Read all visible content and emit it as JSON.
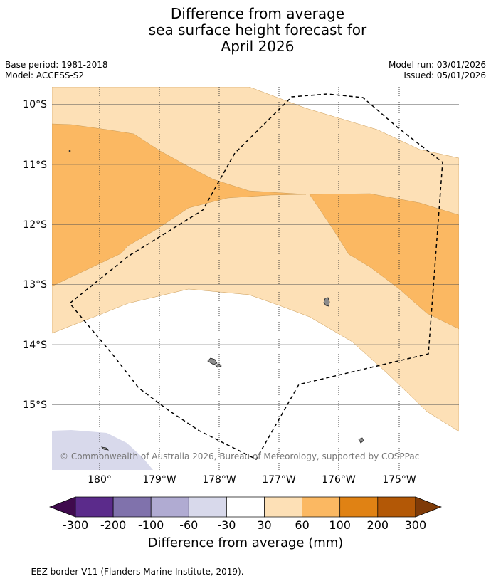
{
  "title": {
    "line1": "Difference from average",
    "line2": "sea surface height forecast for",
    "line3": "April 2026"
  },
  "meta": {
    "base_period": "Base period: 1981-2018",
    "model": "Model: ACCESS-S2",
    "model_run": "Model run: 03/01/2026",
    "issued": "Issued: 05/01/2026"
  },
  "map": {
    "lat_labels": [
      "10°S",
      "11°S",
      "12°S",
      "13°S",
      "14°S",
      "15°S"
    ],
    "lon_labels": [
      "180°",
      "179°W",
      "178°W",
      "177°W",
      "176°W",
      "175°W"
    ],
    "attribution": "© Commonwealth of Australia 2026, Bureau of Meteorology, supported by COSPPac",
    "colors": {
      "band_30_60": "#fde0b6",
      "band_60_100": "#fbb862",
      "band_neg60_neg30": "#d8d9eb",
      "land": "#8c8c8c",
      "eez": "#000000"
    }
  },
  "colorbar": {
    "ticks": [
      "-300",
      "-200",
      "-100",
      "-60",
      "-30",
      "30",
      "60",
      "100",
      "200",
      "300"
    ],
    "colors": [
      "#3f0a4d",
      "#5b2b8b",
      "#8072ac",
      "#b0abd2",
      "#d8d9eb",
      "#ffffff",
      "#fde0b6",
      "#fbb862",
      "#e08214",
      "#b35806",
      "#7f3b08"
    ],
    "caption": "Difference from average (mm)"
  },
  "footer": {
    "legend_symbol": "-- -- --",
    "legend_text": "EEZ border V11 (Flanders Marine Institute, 2019)."
  }
}
